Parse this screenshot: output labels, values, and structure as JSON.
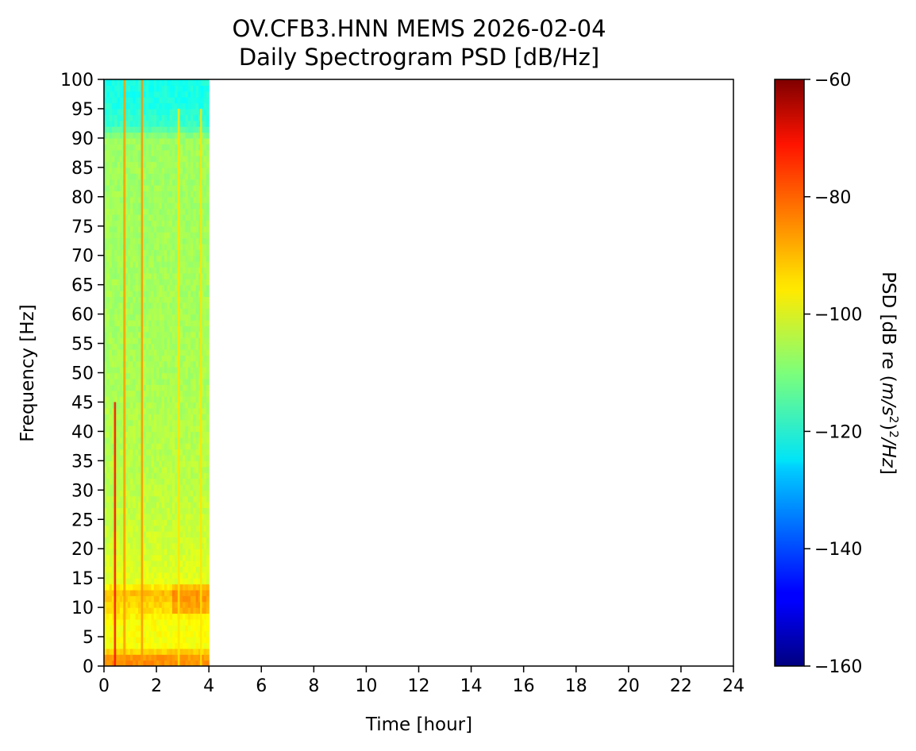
{
  "chart_data": {
    "type": "heatmap",
    "title": "OV.CFB3.HNN MEMS 2026-02-04",
    "subtitle": "Daily Spectrogram PSD [dB/Hz]",
    "xlabel": "Time [hour]",
    "ylabel": "Frequency [Hz]",
    "xlim": [
      0,
      24
    ],
    "ylim": [
      0,
      100
    ],
    "x_ticks": [
      0,
      2,
      4,
      6,
      8,
      10,
      12,
      14,
      16,
      18,
      20,
      22,
      24
    ],
    "y_ticks": [
      0,
      5,
      10,
      15,
      20,
      25,
      30,
      35,
      40,
      45,
      50,
      55,
      60,
      65,
      70,
      75,
      80,
      85,
      90,
      95,
      100
    ],
    "data_time_range_hours": [
      0,
      4
    ],
    "colormap": "jet",
    "colorbar": {
      "label_prefix": "PSD [dB re (",
      "label_italic": "m/s",
      "label_sup": "2",
      "label_mid": ")",
      "label_sup2": "2",
      "label_italic2": "/Hz",
      "label_suffix": "]",
      "range": [
        -160,
        -60
      ],
      "ticks": [
        "−60",
        "−80",
        "−100",
        "−120",
        "−140",
        "−160"
      ],
      "tick_values": [
        -60,
        -80,
        -100,
        -120,
        -140,
        -160
      ]
    },
    "frequency_profile_db": [
      {
        "f": 0,
        "db": -86
      },
      {
        "f": 2,
        "db": -88
      },
      {
        "f": 3,
        "db": -98
      },
      {
        "f": 8,
        "db": -98
      },
      {
        "f": 9,
        "db": -95
      },
      {
        "f": 11,
        "db": -93
      },
      {
        "f": 13,
        "db": -91
      },
      {
        "f": 14,
        "db": -100
      },
      {
        "f": 20,
        "db": -102
      },
      {
        "f": 30,
        "db": -104
      },
      {
        "f": 50,
        "db": -106
      },
      {
        "f": 90,
        "db": -107
      },
      {
        "f": 92,
        "db": -117
      },
      {
        "f": 96,
        "db": -120
      },
      {
        "f": 100,
        "db": -120
      }
    ],
    "events": [
      {
        "time_hours": 0.42,
        "width_hours": 0.08,
        "f_min": 0,
        "f_max": 45,
        "db": -74
      },
      {
        "time_hours": 0.78,
        "width_hours": 0.09,
        "f_min": 0,
        "f_max": 100,
        "db": -88
      },
      {
        "time_hours": 1.45,
        "width_hours": 0.08,
        "f_min": 0,
        "f_max": 100,
        "db": -87
      },
      {
        "time_hours": 2.85,
        "width_hours": 0.08,
        "f_min": 0,
        "f_max": 95,
        "db": -95
      },
      {
        "time_hours": 3.7,
        "width_hours": 0.07,
        "f_min": 0,
        "f_max": 95,
        "db": -95
      }
    ]
  }
}
